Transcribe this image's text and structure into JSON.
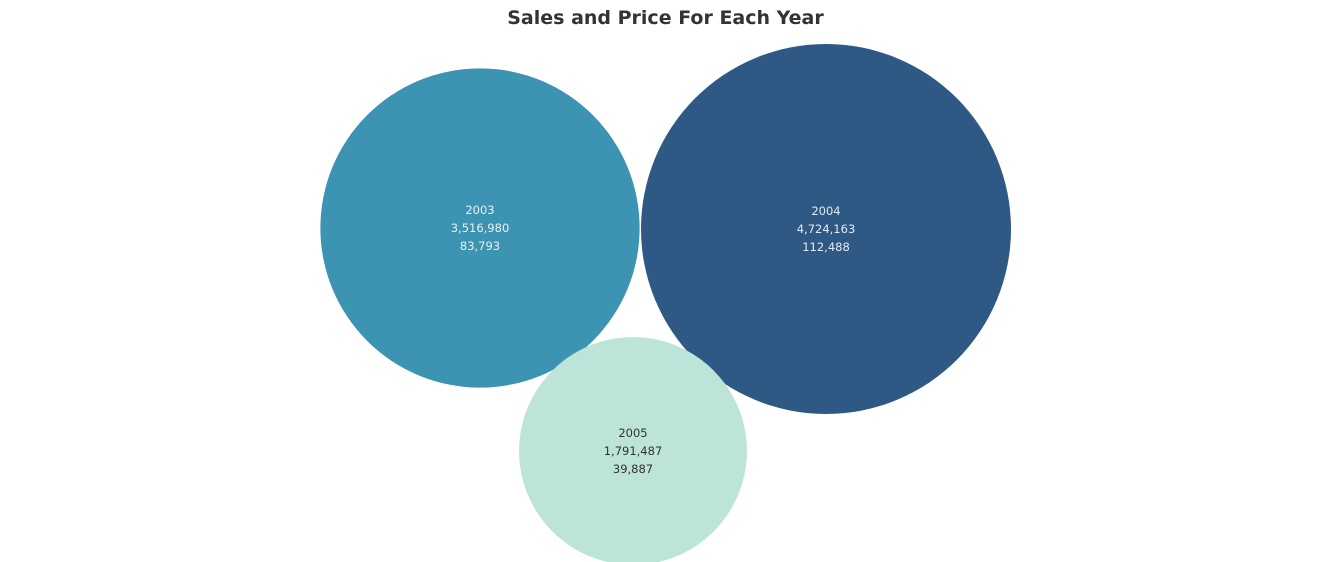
{
  "chart_data": {
    "type": "bubble",
    "title": "Sales and Price For Each Year",
    "label_fields": [
      "year",
      "sales",
      "price"
    ],
    "bubbles": [
      {
        "year": "2003",
        "sales": "3,516,980",
        "price": "83,793",
        "sales_value": 3516980,
        "price_value": 83793,
        "color": "#3C93B2",
        "text_color": "#E8F2F6"
      },
      {
        "year": "2004",
        "sales": "4,724,163",
        "price": "112,488",
        "sales_value": 4724163,
        "price_value": 112488,
        "color": "#2E5985",
        "text_color": "#E3EAF2"
      },
      {
        "year": "2005",
        "sales": "1,791,487",
        "price": "39,887",
        "sales_value": 1791487,
        "price_value": 39887,
        "color": "#BDE4D9",
        "text_color": "#333333"
      }
    ]
  }
}
